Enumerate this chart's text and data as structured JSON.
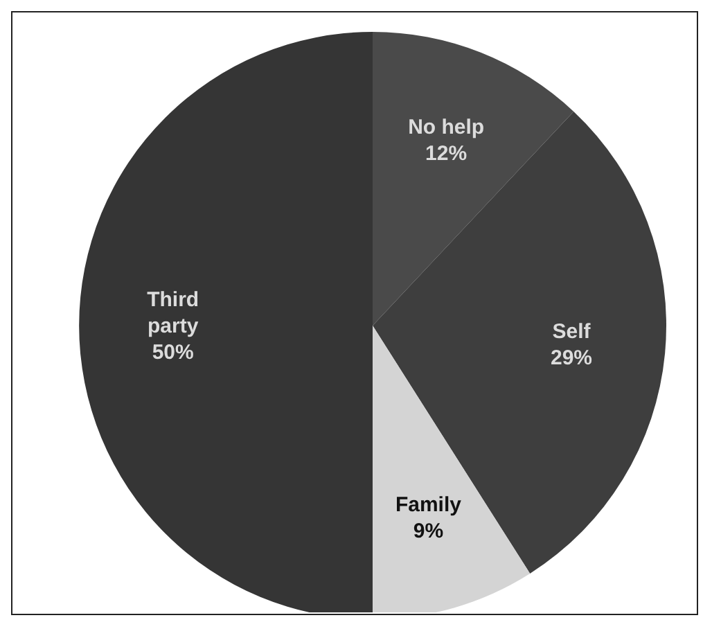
{
  "chart_data": {
    "type": "pie",
    "categories": [
      "No help",
      "Self",
      "Family",
      "Third party"
    ],
    "values": [
      12,
      29,
      9,
      50
    ],
    "value_labels": [
      "12%",
      "29%",
      "9%",
      "50%"
    ],
    "colors": [
      "#4a4a4a",
      "#3e3e3e",
      "#d4d4d4",
      "#353535"
    ],
    "legend": false
  }
}
